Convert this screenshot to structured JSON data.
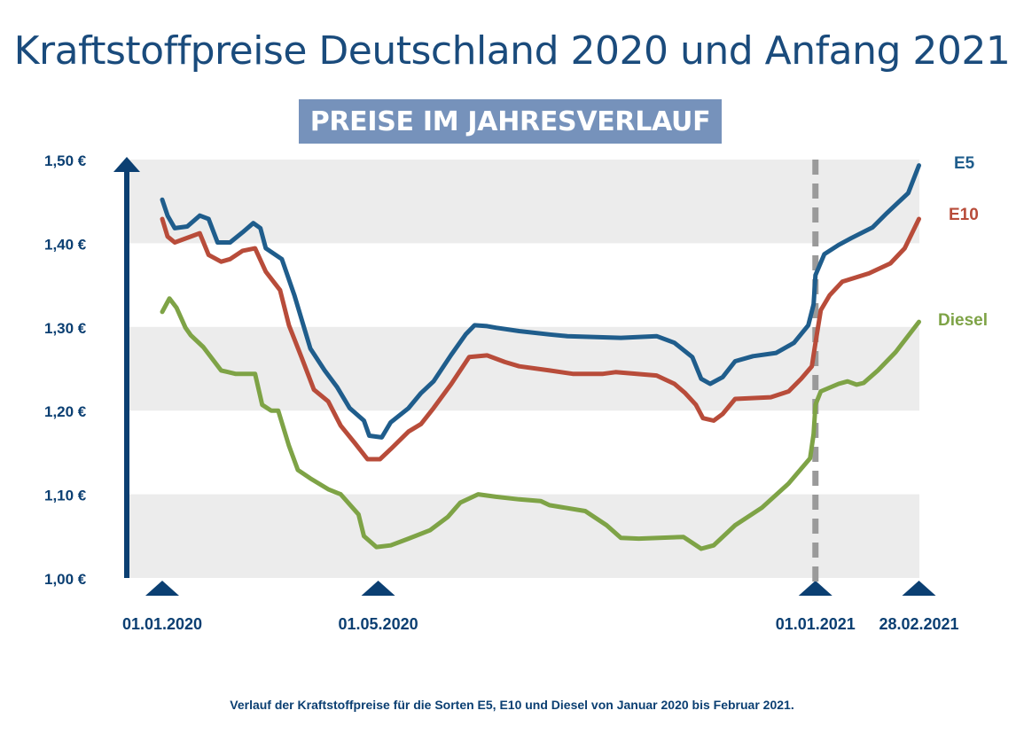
{
  "header": {
    "title": "Kraftstoffpreise Deutschland 2020 und Anfang 2021",
    "banner": "PREISE IM JAHRESVERLAUF"
  },
  "caption": "Verlauf der Kraftstoffpreise für die Sorten E5, E10 und Diesel von Januar 2020 bis Februar 2021.",
  "colors": {
    "text": "#0b3f72",
    "banner": "#7692bb",
    "band": "#ececec",
    "dashed_marker": "#9a9a9a",
    "E5": "#1f5d8c",
    "E10": "#b84c3a",
    "Diesel": "#7ea346"
  },
  "chart_data": {
    "type": "line",
    "title": "Kraftstoffpreise Deutschland 2020 und Anfang 2021",
    "subtitle": "PREISE IM JAHRESVERLAUF",
    "xlabel": "",
    "ylabel": "",
    "x_type": "date",
    "xlim": [
      "2020-01-01",
      "2021-02-28"
    ],
    "ylim": [
      1.0,
      1.5
    ],
    "y_ticks": [
      1.0,
      1.1,
      1.2,
      1.3,
      1.4,
      1.5
    ],
    "y_tick_labels": [
      "1,00 €",
      "1,10 €",
      "1,20 €",
      "1,30 €",
      "1,40 €",
      "1,50 €"
    ],
    "x_ticks": [
      "2020-01-01",
      "2020-05-01",
      "2021-01-01",
      "2021-02-28"
    ],
    "x_tick_labels": [
      "01.01.2020",
      "01.05.2020",
      "01.01.2021",
      "28.02.2021"
    ],
    "grid": "alternating horizontal bands",
    "legend": "labels at right end of lines",
    "annotations": [
      {
        "type": "dashed-vertical-line",
        "x": "2021-01-01"
      }
    ],
    "series": [
      {
        "name": "E5",
        "color": "#1f5d8c",
        "points": [
          [
            "2020-01-01",
            1.452
          ],
          [
            "2020-01-04",
            1.433
          ],
          [
            "2020-01-08",
            1.418
          ],
          [
            "2020-01-15",
            1.42
          ],
          [
            "2020-01-22",
            1.433
          ],
          [
            "2020-01-27",
            1.429
          ],
          [
            "2020-02-01",
            1.401
          ],
          [
            "2020-02-08",
            1.401
          ],
          [
            "2020-02-15",
            1.413
          ],
          [
            "2020-02-21",
            1.424
          ],
          [
            "2020-02-25",
            1.418
          ],
          [
            "2020-02-28",
            1.394
          ],
          [
            "2020-03-08",
            1.381
          ],
          [
            "2020-03-15",
            1.338
          ],
          [
            "2020-03-24",
            1.274
          ],
          [
            "2020-04-01",
            1.248
          ],
          [
            "2020-04-08",
            1.228
          ],
          [
            "2020-04-15",
            1.203
          ],
          [
            "2020-04-23",
            1.188
          ],
          [
            "2020-04-26",
            1.17
          ],
          [
            "2020-05-03",
            1.168
          ],
          [
            "2020-05-08",
            1.186
          ],
          [
            "2020-05-18",
            1.203
          ],
          [
            "2020-05-25",
            1.221
          ],
          [
            "2020-06-01",
            1.235
          ],
          [
            "2020-06-11",
            1.267
          ],
          [
            "2020-06-19",
            1.291
          ],
          [
            "2020-06-24",
            1.302
          ],
          [
            "2020-07-01",
            1.301
          ],
          [
            "2020-07-06",
            1.299
          ],
          [
            "2020-07-19",
            1.295
          ],
          [
            "2020-08-05",
            1.291
          ],
          [
            "2020-08-15",
            1.289
          ],
          [
            "2020-09-14",
            1.287
          ],
          [
            "2020-10-04",
            1.289
          ],
          [
            "2020-10-14",
            1.281
          ],
          [
            "2020-10-24",
            1.264
          ],
          [
            "2020-10-29",
            1.238
          ],
          [
            "2020-11-03",
            1.232
          ],
          [
            "2020-11-10",
            1.24
          ],
          [
            "2020-11-17",
            1.259
          ],
          [
            "2020-11-27",
            1.265
          ],
          [
            "2020-12-10",
            1.269
          ],
          [
            "2020-12-20",
            1.281
          ],
          [
            "2020-12-28",
            1.302
          ],
          [
            "2020-12-31",
            1.327
          ],
          [
            "2021-01-01",
            1.362
          ],
          [
            "2021-01-06",
            1.387
          ],
          [
            "2021-01-14",
            1.398
          ],
          [
            "2021-01-21",
            1.406
          ],
          [
            "2021-02-02",
            1.419
          ],
          [
            "2021-02-10",
            1.436
          ],
          [
            "2021-02-22",
            1.46
          ],
          [
            "2021-02-28",
            1.493
          ]
        ]
      },
      {
        "name": "E10",
        "color": "#b84c3a",
        "points": [
          [
            "2020-01-01",
            1.429
          ],
          [
            "2020-01-04",
            1.408
          ],
          [
            "2020-01-08",
            1.401
          ],
          [
            "2020-01-22",
            1.412
          ],
          [
            "2020-01-27",
            1.386
          ],
          [
            "2020-02-03",
            1.378
          ],
          [
            "2020-02-08",
            1.381
          ],
          [
            "2020-02-15",
            1.391
          ],
          [
            "2020-02-22",
            1.394
          ],
          [
            "2020-02-28",
            1.366
          ],
          [
            "2020-03-07",
            1.344
          ],
          [
            "2020-03-12",
            1.302
          ],
          [
            "2020-03-19",
            1.264
          ],
          [
            "2020-03-26",
            1.225
          ],
          [
            "2020-04-03",
            1.211
          ],
          [
            "2020-04-10",
            1.182
          ],
          [
            "2020-04-18",
            1.161
          ],
          [
            "2020-04-25",
            1.142
          ],
          [
            "2020-05-02",
            1.142
          ],
          [
            "2020-05-08",
            1.154
          ],
          [
            "2020-05-18",
            1.175
          ],
          [
            "2020-05-25",
            1.184
          ],
          [
            "2020-06-01",
            1.203
          ],
          [
            "2020-06-11",
            1.232
          ],
          [
            "2020-06-21",
            1.264
          ],
          [
            "2020-07-01",
            1.266
          ],
          [
            "2020-07-11",
            1.258
          ],
          [
            "2020-07-19",
            1.253
          ],
          [
            "2020-08-05",
            1.248
          ],
          [
            "2020-08-18",
            1.244
          ],
          [
            "2020-09-04",
            1.244
          ],
          [
            "2020-09-11",
            1.246
          ],
          [
            "2020-10-04",
            1.242
          ],
          [
            "2020-10-14",
            1.232
          ],
          [
            "2020-10-20",
            1.221
          ],
          [
            "2020-10-26",
            1.207
          ],
          [
            "2020-10-30",
            1.191
          ],
          [
            "2020-11-05",
            1.188
          ],
          [
            "2020-11-10",
            1.196
          ],
          [
            "2020-11-17",
            1.214
          ],
          [
            "2020-12-07",
            1.216
          ],
          [
            "2020-12-17",
            1.223
          ],
          [
            "2020-12-24",
            1.238
          ],
          [
            "2020-12-30",
            1.253
          ],
          [
            "2021-01-01",
            1.281
          ],
          [
            "2021-01-04",
            1.32
          ],
          [
            "2021-01-09",
            1.338
          ],
          [
            "2021-01-16",
            1.354
          ],
          [
            "2021-01-31",
            1.364
          ],
          [
            "2021-02-12",
            1.376
          ],
          [
            "2021-02-20",
            1.394
          ],
          [
            "2021-02-28",
            1.429
          ]
        ]
      },
      {
        "name": "Diesel",
        "color": "#7ea346",
        "points": [
          [
            "2020-01-01",
            1.318
          ],
          [
            "2020-01-05",
            1.334
          ],
          [
            "2020-01-09",
            1.323
          ],
          [
            "2020-01-14",
            1.299
          ],
          [
            "2020-01-17",
            1.29
          ],
          [
            "2020-01-24",
            1.276
          ],
          [
            "2020-02-03",
            1.248
          ],
          [
            "2020-02-11",
            1.244
          ],
          [
            "2020-02-22",
            1.244
          ],
          [
            "2020-02-26",
            1.207
          ],
          [
            "2020-03-02",
            1.2
          ],
          [
            "2020-03-06",
            1.2
          ],
          [
            "2020-03-12",
            1.158
          ],
          [
            "2020-03-17",
            1.129
          ],
          [
            "2020-03-24",
            1.119
          ],
          [
            "2020-04-03",
            1.106
          ],
          [
            "2020-04-10",
            1.1
          ],
          [
            "2020-04-20",
            1.076
          ],
          [
            "2020-04-23",
            1.05
          ],
          [
            "2020-04-30",
            1.037
          ],
          [
            "2020-05-08",
            1.039
          ],
          [
            "2020-05-18",
            1.047
          ],
          [
            "2020-05-30",
            1.057
          ],
          [
            "2020-06-09",
            1.073
          ],
          [
            "2020-06-16",
            1.09
          ],
          [
            "2020-06-26",
            1.1
          ],
          [
            "2020-07-06",
            1.097
          ],
          [
            "2020-07-19",
            1.094
          ],
          [
            "2020-07-31",
            1.092
          ],
          [
            "2020-08-05",
            1.087
          ],
          [
            "2020-08-25",
            1.08
          ],
          [
            "2020-09-06",
            1.063
          ],
          [
            "2020-09-14",
            1.048
          ],
          [
            "2020-09-24",
            1.047
          ],
          [
            "2020-10-19",
            1.049
          ],
          [
            "2020-10-29",
            1.035
          ],
          [
            "2020-11-05",
            1.039
          ],
          [
            "2020-11-17",
            1.063
          ],
          [
            "2020-12-02",
            1.084
          ],
          [
            "2020-12-17",
            1.113
          ],
          [
            "2020-12-29",
            1.143
          ],
          [
            "2020-12-31",
            1.172
          ],
          [
            "2021-01-01",
            1.207
          ],
          [
            "2021-01-04",
            1.223
          ],
          [
            "2021-01-14",
            1.232
          ],
          [
            "2021-01-19",
            1.235
          ],
          [
            "2021-01-24",
            1.231
          ],
          [
            "2021-01-28",
            1.233
          ],
          [
            "2021-02-05",
            1.248
          ],
          [
            "2021-02-15",
            1.27
          ],
          [
            "2021-02-28",
            1.306
          ]
        ]
      }
    ]
  }
}
